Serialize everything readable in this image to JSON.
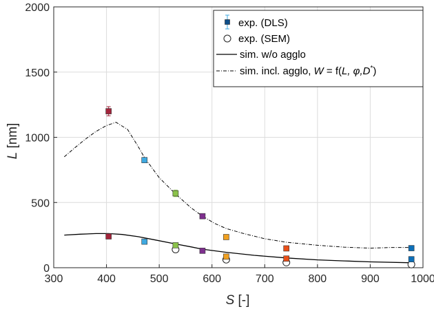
{
  "chart_data": {
    "type": "scatter",
    "xlabel_italic": "S",
    "xlabel_rest": " [-]",
    "ylabel_italic": "L",
    "ylabel_rest": " [nm]",
    "xlim": [
      300,
      1000
    ],
    "ylim": [
      0,
      2000
    ],
    "xticks": [
      300,
      400,
      500,
      600,
      700,
      800,
      900,
      1000
    ],
    "yticks": [
      0,
      500,
      1000,
      1500,
      2000
    ],
    "grid": true,
    "legend_placement": "top-right",
    "legend": {
      "dls": "exp. (DLS)",
      "sem": "exp. (SEM)",
      "sim_no_agglo": "sim. w/o agglo",
      "sim_agglo_prefix": "sim. incl. agglo, ",
      "sim_agglo_w": "W",
      "sim_agglo_eq": " = f(",
      "sim_agglo_args": "L, φ,D",
      "sim_agglo_sup": "*",
      "sim_agglo_close": ")"
    },
    "series": [
      {
        "name": "exp. (DLS)",
        "kind": "markers",
        "points": [
          {
            "x": 404,
            "y": 1200,
            "err": 35,
            "color": "#a3243b"
          },
          {
            "x": 404,
            "y": 240,
            "err": 0,
            "color": "#a3243b"
          },
          {
            "x": 472,
            "y": 825,
            "err": 0,
            "color": "#3fa9e0"
          },
          {
            "x": 472,
            "y": 200,
            "err": 0,
            "color": "#3fa9e0"
          },
          {
            "x": 531,
            "y": 570,
            "err": 25,
            "color": "#8bc34a"
          },
          {
            "x": 531,
            "y": 172,
            "err": 0,
            "color": "#8bc34a"
          },
          {
            "x": 582,
            "y": 395,
            "err": 0,
            "color": "#7e2f8e"
          },
          {
            "x": 582,
            "y": 130,
            "err": 0,
            "color": "#7e2f8e"
          },
          {
            "x": 627,
            "y": 235,
            "err": 0,
            "color": "#f0a020"
          },
          {
            "x": 627,
            "y": 85,
            "err": 0,
            "color": "#f0a020"
          },
          {
            "x": 741,
            "y": 148,
            "err": 0,
            "color": "#e8501a"
          },
          {
            "x": 741,
            "y": 70,
            "err": 0,
            "color": "#e8501a"
          },
          {
            "x": 978,
            "y": 150,
            "err": 0,
            "color": "#0d6fb8"
          },
          {
            "x": 978,
            "y": 65,
            "err": 0,
            "color": "#0d6fb8"
          }
        ]
      },
      {
        "name": "exp. (SEM)",
        "kind": "open-circles",
        "points": [
          {
            "x": 531,
            "y": 140
          },
          {
            "x": 627,
            "y": 62
          },
          {
            "x": 741,
            "y": 40
          },
          {
            "x": 978,
            "y": 25
          }
        ]
      },
      {
        "name": "sim. w/o agglo",
        "kind": "solid-line",
        "points": [
          {
            "x": 320,
            "y": 250
          },
          {
            "x": 350,
            "y": 257
          },
          {
            "x": 380,
            "y": 262
          },
          {
            "x": 404,
            "y": 262
          },
          {
            "x": 430,
            "y": 255
          },
          {
            "x": 460,
            "y": 238
          },
          {
            "x": 490,
            "y": 215
          },
          {
            "x": 531,
            "y": 182
          },
          {
            "x": 560,
            "y": 160
          },
          {
            "x": 582,
            "y": 142
          },
          {
            "x": 627,
            "y": 118
          },
          {
            "x": 680,
            "y": 95
          },
          {
            "x": 741,
            "y": 75
          },
          {
            "x": 800,
            "y": 60
          },
          {
            "x": 850,
            "y": 52
          },
          {
            "x": 900,
            "y": 45
          },
          {
            "x": 978,
            "y": 38
          }
        ]
      },
      {
        "name": "sim. incl. agglo, W = f(L, φ,D*)",
        "kind": "dashdot-line",
        "points": [
          {
            "x": 320,
            "y": 850
          },
          {
            "x": 340,
            "y": 920
          },
          {
            "x": 360,
            "y": 985
          },
          {
            "x": 380,
            "y": 1045
          },
          {
            "x": 400,
            "y": 1090
          },
          {
            "x": 418,
            "y": 1115
          },
          {
            "x": 440,
            "y": 1060
          },
          {
            "x": 460,
            "y": 930
          },
          {
            "x": 472,
            "y": 845
          },
          {
            "x": 500,
            "y": 690
          },
          {
            "x": 531,
            "y": 565
          },
          {
            "x": 560,
            "y": 460
          },
          {
            "x": 582,
            "y": 395
          },
          {
            "x": 605,
            "y": 340
          },
          {
            "x": 627,
            "y": 300
          },
          {
            "x": 660,
            "y": 262
          },
          {
            "x": 700,
            "y": 222
          },
          {
            "x": 741,
            "y": 195
          },
          {
            "x": 800,
            "y": 172
          },
          {
            "x": 850,
            "y": 158
          },
          {
            "x": 900,
            "y": 150
          },
          {
            "x": 940,
            "y": 155
          },
          {
            "x": 978,
            "y": 155
          }
        ]
      }
    ]
  }
}
